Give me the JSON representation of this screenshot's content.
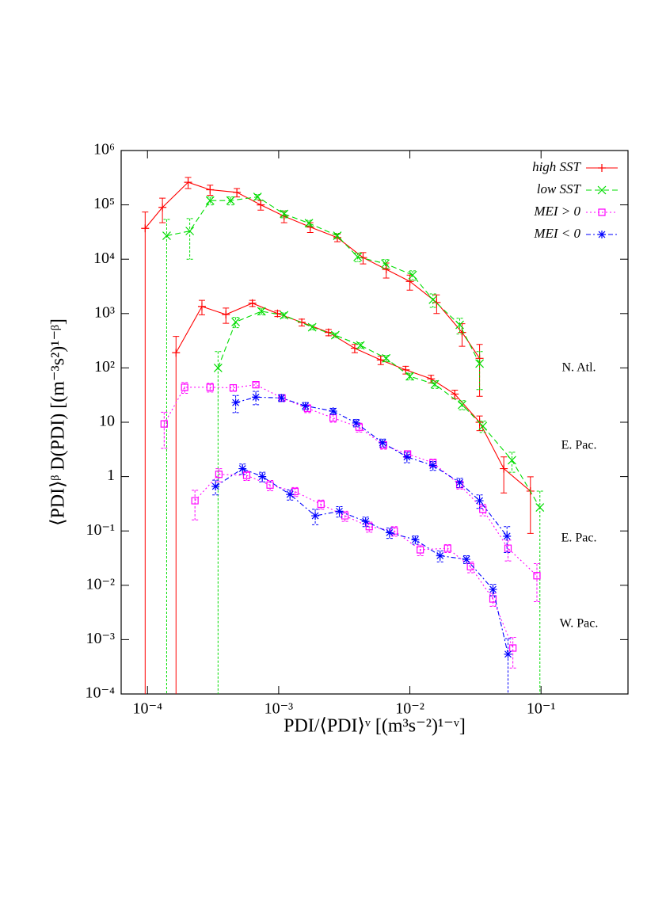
{
  "chart_data": {
    "type": "line",
    "xlabel": "PDI/⟨PDI⟩ᵛ [(m³s⁻²)¹⁻ᵛ]",
    "ylabel": "⟨PDI⟩ᵝ D(PDI) [(m⁻³s²)¹⁻ᵝ]",
    "log_x": true,
    "log_y": true,
    "legend": "upper right",
    "xlim": [
      6.3e-05,
      0.46
    ],
    "ylim": [
      0.0001,
      1000000
    ],
    "xticks": [
      {
        "value": 0.0001,
        "label": "10⁻⁴"
      },
      {
        "value": 0.001,
        "label": "10⁻³"
      },
      {
        "value": 0.01,
        "label": "10⁻²"
      },
      {
        "value": 0.1,
        "label": "10⁻¹"
      }
    ],
    "yticks": [
      {
        "value": 0.0001,
        "label": "10⁻⁴"
      },
      {
        "value": 0.001,
        "label": "10⁻³"
      },
      {
        "value": 0.01,
        "label": "10⁻²"
      },
      {
        "value": 0.1,
        "label": "10⁻¹"
      },
      1,
      10,
      {
        "value": 100,
        "label": "10²"
      },
      {
        "value": 1000,
        "label": "10³"
      },
      {
        "value": 10000,
        "label": "10⁴"
      },
      {
        "value": 100000,
        "label": "10⁵"
      },
      {
        "value": 1000000,
        "label": "10⁶"
      }
    ],
    "annotations": [
      "N. Atl.",
      "E. Pac.",
      "E. Pac.",
      "W. Pac."
    ],
    "series": [
      {
        "name": "high SST",
        "color": "#ff0000",
        "marker": "plus",
        "dash": "solid",
        "curves": [
          {
            "x": [
              9.6e-05,
              0.00013,
              0.000204,
              0.0003,
              0.00048,
              0.00073,
              0.0011,
              0.00174,
              0.0028,
              0.0044,
              0.0066,
              0.01,
              0.016,
              0.025,
              0.034
            ],
            "values": [
              37000,
              90000,
              260000,
              190000,
              170000,
              100000,
              62000,
              39000,
              25000,
              10700,
              6500,
              3900,
              1600,
              450,
              150
            ],
            "errors": [
              37000,
              43000,
              60000,
              40000,
              30000,
              20000,
              15000,
              8000,
              4000,
              2500,
              2000,
              1200,
              600,
              200,
              120
            ]
          },
          {
            "x": [
              0.000165,
              0.00026,
              0.000396,
              0.00063,
              0.00098,
              0.0015,
              0.0024,
              0.0038,
              0.006,
              0.0093,
              0.0145,
              0.022,
              0.034,
              0.052,
              0.083
            ],
            "values": [
              190,
              1350,
              960,
              1550,
              1000,
              690,
              450,
              230,
              140,
              92,
              63,
              33,
              10,
              1.4,
              0.54
            ],
            "errors": [
              190,
              400,
              300,
              200,
              120,
              100,
              60,
              40,
              25,
              15,
              10,
              6,
              3,
              0.9,
              0.45
            ]
          }
        ]
      },
      {
        "name": "low SST",
        "color": "#00dd00",
        "marker": "cross",
        "dash": "7,4",
        "curves": [
          {
            "x": [
              0.00014,
              0.00021,
              0.0003,
              0.00043,
              0.00069,
              0.0011,
              0.0017,
              0.0028,
              0.004,
              0.0065,
              0.0105,
              0.015,
              0.024,
              0.034
            ],
            "values": [
              27000,
              33000,
              120000,
              120000,
              140000,
              68000,
              46000,
              27000,
              11000,
              8300,
              5100,
              1800,
              620,
              120
            ],
            "errors": [
              27000,
              23000,
              20000,
              20000,
              15000,
              10000,
              6000,
              3000,
              2000,
              1500,
              1000,
              500,
              200,
              80
            ]
          },
          {
            "x": [
              0.000345,
              0.00047,
              0.00074,
              0.0011,
              0.0018,
              0.0027,
              0.0042,
              0.0066,
              0.01,
              0.0155,
              0.025,
              0.036,
              0.06,
              0.098
            ],
            "values": [
              100,
              700,
              1100,
              930,
              560,
              400,
              260,
              150,
              70,
              50,
              21,
              8.5,
              2,
              0.27
            ],
            "errors": [
              100,
              150,
              150,
              100,
              60,
              40,
              30,
              20,
              10,
              8,
              4,
              2,
              0.8,
              0.27
            ]
          }
        ]
      },
      {
        "name": "MEI > 0",
        "color": "#ff00ff",
        "marker": "square",
        "dash": "2,3",
        "curves": [
          {
            "x": [
              0.000134,
              0.000192,
              0.0003,
              0.00045,
              0.00067,
              0.00106,
              0.00166,
              0.0026,
              0.0041,
              0.0063,
              0.0096,
              0.015,
              0.024,
              0.036,
              0.056,
              0.093
            ],
            "values": [
              9.3,
              44,
              44,
              43,
              49,
              28,
              18,
              12,
              8.1,
              3.8,
              2.6,
              1.8,
              0.71,
              0.25,
              0.048,
              0.015
            ],
            "errors": [
              6,
              10,
              8,
              6,
              6,
              4,
              3,
              2,
              1.5,
              0.6,
              0.4,
              0.3,
              0.12,
              0.06,
              0.02,
              0.01
            ]
          },
          {
            "x": [
              0.00023,
              0.00035,
              0.00057,
              0.00086,
              0.00133,
              0.0021,
              0.0032,
              0.0049,
              0.0076,
              0.012,
              0.0194,
              0.029,
              0.043,
              0.061
            ],
            "values": [
              0.36,
              1.1,
              1.05,
              0.7,
              0.53,
              0.31,
              0.19,
              0.12,
              0.1,
              0.045,
              0.048,
              0.022,
              0.0056,
              0.0007
            ],
            "errors": [
              0.2,
              0.3,
              0.2,
              0.15,
              0.1,
              0.06,
              0.04,
              0.025,
              0.02,
              0.01,
              0.008,
              0.005,
              0.0015,
              0.0004
            ]
          }
        ]
      },
      {
        "name": "MEI < 0",
        "color": "#0000ff",
        "marker": "star",
        "dash": "6,3,2,3",
        "curves": [
          {
            "x": [
              0.00047,
              0.00067,
              0.00105,
              0.0016,
              0.0026,
              0.0039,
              0.0062,
              0.0095,
              0.015,
              0.024,
              0.034,
              0.055
            ],
            "values": [
              23,
              29,
              28,
              20,
              16,
              9.7,
              4.2,
              2.3,
              1.6,
              0.78,
              0.36,
              0.08
            ],
            "errors": [
              8,
              8,
              4,
              3,
              2,
              1.5,
              0.7,
              0.5,
              0.3,
              0.15,
              0.1,
              0.04
            ]
          },
          {
            "x": [
              0.00033,
              0.00053,
              0.00075,
              0.00122,
              0.0019,
              0.0029,
              0.0046,
              0.007,
              0.011,
              0.017,
              0.027,
              0.043,
              0.056
            ],
            "values": [
              0.66,
              1.4,
              1.0,
              0.47,
              0.19,
              0.23,
              0.15,
              0.093,
              0.069,
              0.035,
              0.03,
              0.0084,
              0.00054
            ],
            "errors": [
              0.2,
              0.3,
              0.2,
              0.1,
              0.06,
              0.05,
              0.03,
              0.02,
              0.012,
              0.008,
              0.005,
              0.002,
              0.0005
            ]
          }
        ]
      }
    ]
  }
}
